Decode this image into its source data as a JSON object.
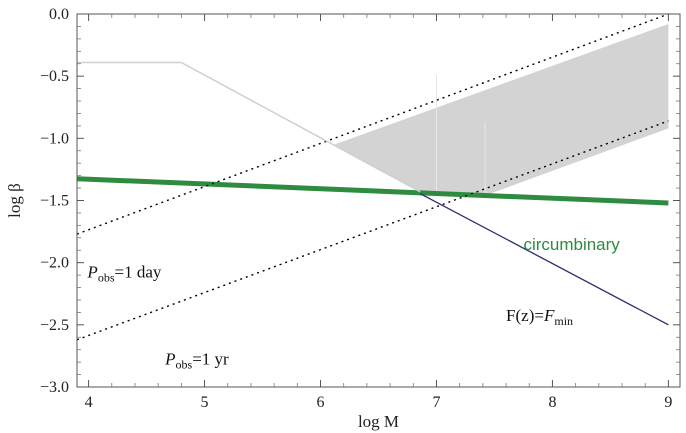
{
  "chart_data": {
    "type": "line",
    "xlabel": "log M",
    "ylabel": "log β",
    "xlim": [
      3.9,
      9.1
    ],
    "ylim": [
      -3.0,
      0.0
    ],
    "xticks": [
      "4",
      "5",
      "6",
      "7",
      "8",
      "9"
    ],
    "xtick_values": [
      4,
      5,
      6,
      7,
      8,
      9
    ],
    "yticks": [
      "0.0",
      "−0.5",
      "−1.0",
      "−1.5",
      "−2.0",
      "−2.5",
      "−3.0"
    ],
    "ytick_values": [
      0.0,
      -0.5,
      -1.0,
      -1.5,
      -2.0,
      -2.5,
      -3.0
    ],
    "grid": false,
    "colors": {
      "circumbinary": "#2e8b40",
      "fmin_line": "#2b2b6e",
      "shaded_region": "#d3d3d3",
      "upper_envelope": "#cfcfcf",
      "dotted_lines": "#000000"
    },
    "series": [
      {
        "name": "circumbinary",
        "style": "solid-thick",
        "points": [
          [
            3.9,
            -1.325
          ],
          [
            9.0,
            -1.52
          ]
        ]
      },
      {
        "name": "F(z)=Fmin",
        "style": "solid",
        "points": [
          [
            6.86,
            -1.445
          ],
          [
            9.0,
            -2.5
          ]
        ]
      },
      {
        "name": "Pobs=1 day",
        "style": "dotted",
        "points": [
          [
            3.9,
            -1.77
          ],
          [
            9.0,
            0.0
          ]
        ]
      },
      {
        "name": "Pobs=1 yr",
        "style": "dotted",
        "points": [
          [
            3.9,
            -2.62
          ],
          [
            9.0,
            -0.86
          ]
        ]
      },
      {
        "name": "upper envelope",
        "style": "faint",
        "points": [
          [
            3.9,
            -0.39
          ],
          [
            4.8,
            -0.39
          ],
          [
            6.86,
            -1.43
          ]
        ]
      }
    ],
    "shaded_region": [
      [
        6.12,
        -1.05
      ],
      [
        9.0,
        -0.08
      ],
      [
        9.0,
        -0.92
      ],
      [
        7.42,
        -1.46
      ],
      [
        6.86,
        -1.43
      ]
    ],
    "annotations": [
      {
        "id": "circumbinary",
        "text": "circumbinary",
        "x": 7.75,
        "y": -1.9
      },
      {
        "id": "pday",
        "prefix": "P",
        "sub": "obs",
        "suffix": "=1 day",
        "x": 3.99,
        "y": -2.12
      },
      {
        "id": "pyr",
        "prefix": "P",
        "sub": "obs",
        "suffix": "=1 yr",
        "x": 4.66,
        "y": -2.82
      },
      {
        "id": "fmin",
        "prefix": "F(z)=",
        "italic": "F",
        "sub": "min",
        "x": 7.6,
        "y": -2.47
      }
    ]
  }
}
